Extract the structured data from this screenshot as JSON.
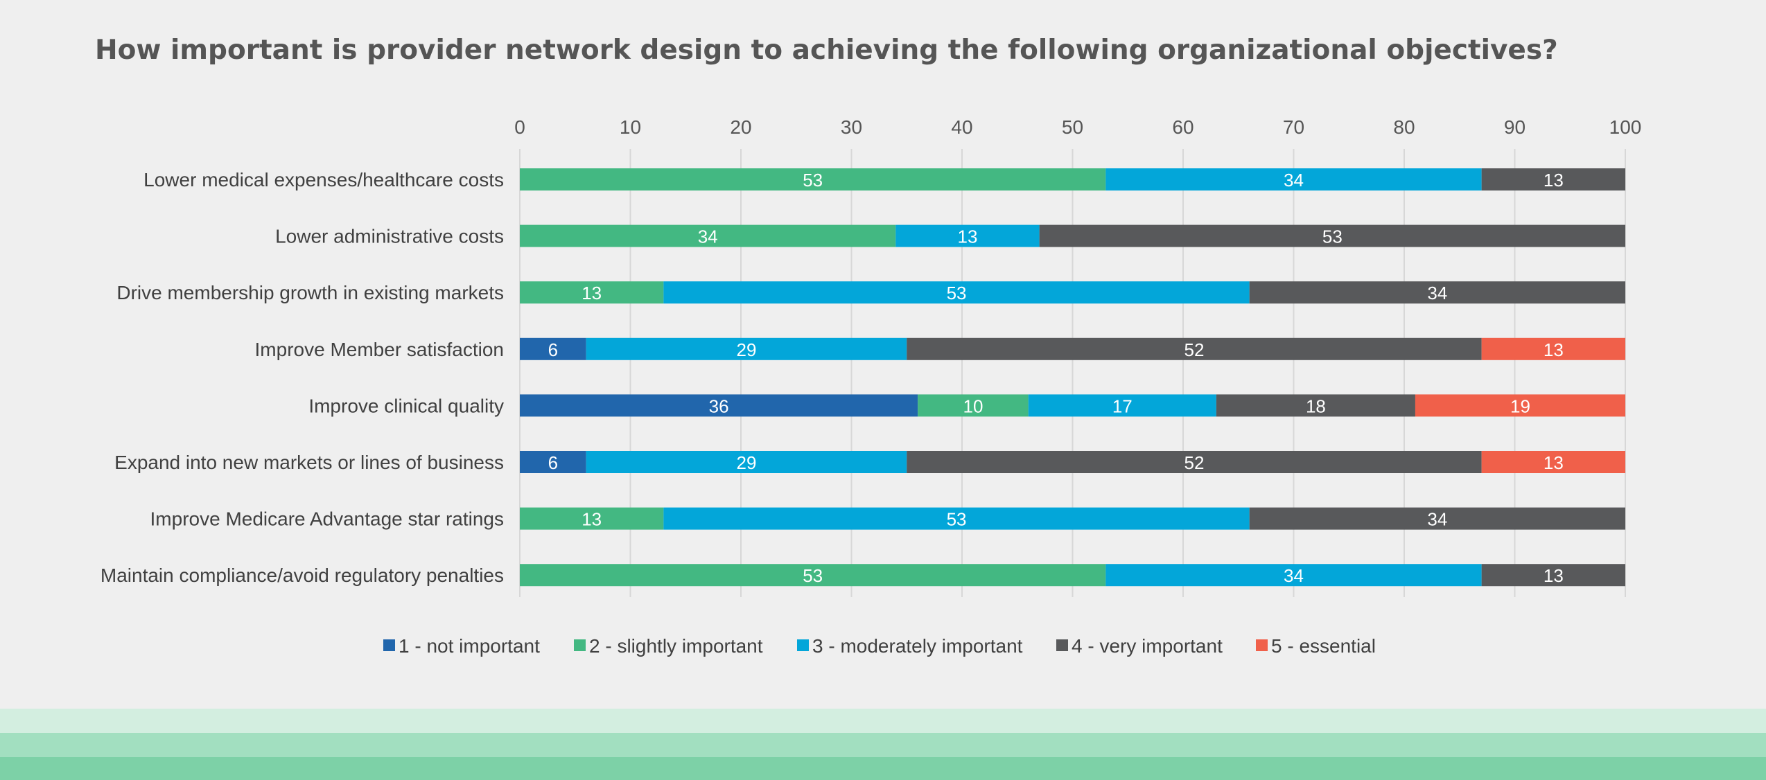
{
  "chart_data": {
    "type": "bar",
    "orientation": "horizontal",
    "stacked": true,
    "title": "How important is provider network design to achieving the following organizational objectives?",
    "xlim": [
      0,
      100
    ],
    "xticks": [
      0,
      10,
      20,
      30,
      40,
      50,
      60,
      70,
      80,
      90,
      100
    ],
    "grid": true,
    "legend_position": "bottom",
    "categories": [
      "Lower medical expenses/healthcare costs",
      "Lower administrative costs",
      "Drive membership growth in existing markets",
      "Improve Member satisfaction",
      "Improve clinical quality",
      "Expand into new markets or lines of business",
      "Improve Medicare Advantage star ratings",
      "Maintain compliance/avoid regulatory penalties"
    ],
    "series": [
      {
        "name": "1 - not important",
        "color": "#2166ac",
        "values": [
          0,
          0,
          0,
          6,
          36,
          6,
          0,
          0
        ]
      },
      {
        "name": "2 - slightly important",
        "color": "#43b882",
        "values": [
          53,
          34,
          13,
          0,
          10,
          0,
          13,
          53
        ]
      },
      {
        "name": "3 - moderately important",
        "color": "#03a6d9",
        "values": [
          34,
          13,
          53,
          29,
          17,
          29,
          53,
          34
        ]
      },
      {
        "name": "4 - very important",
        "color": "#58595b",
        "values": [
          13,
          53,
          34,
          52,
          18,
          52,
          34,
          13
        ]
      },
      {
        "name": "5 - essential",
        "color": "#f0604a",
        "values": [
          0,
          0,
          0,
          13,
          19,
          13,
          0,
          0
        ]
      }
    ]
  }
}
